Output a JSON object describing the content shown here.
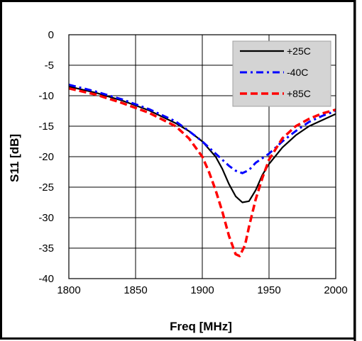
{
  "chart_data": {
    "type": "line",
    "title": "",
    "xlabel": "Freq [MHz]",
    "ylabel": "S11 [dB]",
    "xlim": [
      1800,
      2000
    ],
    "ylim": [
      -40,
      0
    ],
    "xticks": [
      1800,
      1850,
      1900,
      1950,
      2000
    ],
    "yticks": [
      0,
      -5,
      -10,
      -15,
      -20,
      -25,
      -30,
      -35,
      -40
    ],
    "grid": true,
    "legend_position": "top-right",
    "series": [
      {
        "name": "+25C",
        "color": "#000000",
        "style": "solid",
        "x": [
          1800,
          1820,
          1840,
          1860,
          1880,
          1890,
          1900,
          1910,
          1915,
          1920,
          1925,
          1930,
          1935,
          1940,
          1945,
          1950,
          1960,
          1970,
          1980,
          1990,
          2000
        ],
        "y": [
          -8.5,
          -9.5,
          -10.8,
          -12.4,
          -14.5,
          -15.8,
          -17.5,
          -20.0,
          -22.0,
          -24.5,
          -26.5,
          -27.5,
          -27.3,
          -25.5,
          -23.0,
          -21.2,
          -18.5,
          -16.5,
          -15.0,
          -14.0,
          -13.0
        ]
      },
      {
        "name": "-40C",
        "color": "#0000ff",
        "style": "dashdot",
        "x": [
          1800,
          1820,
          1840,
          1860,
          1880,
          1890,
          1900,
          1910,
          1920,
          1925,
          1930,
          1935,
          1940,
          1950,
          1960,
          1970,
          1980,
          1990,
          2000
        ],
        "y": [
          -8.2,
          -9.3,
          -10.6,
          -12.2,
          -14.2,
          -15.8,
          -17.5,
          -19.5,
          -21.5,
          -22.3,
          -22.7,
          -22.2,
          -21.0,
          -19.5,
          -17.5,
          -15.8,
          -14.3,
          -13.3,
          -12.5
        ]
      },
      {
        "name": "+85C",
        "color": "#ff0000",
        "style": "dashed",
        "x": [
          1800,
          1820,
          1840,
          1860,
          1880,
          1890,
          1900,
          1905,
          1910,
          1915,
          1920,
          1925,
          1928,
          1932,
          1935,
          1940,
          1945,
          1950,
          1960,
          1970,
          1980,
          1990,
          2000
        ],
        "y": [
          -8.8,
          -9.8,
          -11.2,
          -12.8,
          -15.0,
          -17.0,
          -20.0,
          -22.5,
          -25.5,
          -29.0,
          -33.0,
          -36.0,
          -36.3,
          -34.5,
          -31.5,
          -27.0,
          -23.5,
          -20.5,
          -17.0,
          -15.0,
          -13.8,
          -12.9,
          -12.3
        ]
      }
    ]
  }
}
